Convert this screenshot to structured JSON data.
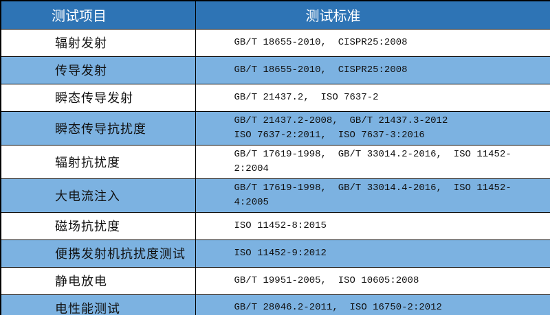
{
  "header": {
    "col1": "测试项目",
    "col2": "测试标准"
  },
  "rows": [
    {
      "item": "辐射发射",
      "standard": "GB/T 18655-2010,  CISPR25:2008"
    },
    {
      "item": "传导发射",
      "standard": "GB/T 18655-2010,  CISPR25:2008"
    },
    {
      "item": "瞬态传导发射",
      "standard": "GB/T 21437.2,  ISO 7637-2"
    },
    {
      "item": "瞬态传导抗扰度",
      "standard": "GB/T 21437.2-2008,  GB/T 21437.3-2012\nISO 7637-2:2011,  ISO 7637-3:2016"
    },
    {
      "item": "辐射抗扰度",
      "standard": "GB/T 17619-1998,  GB/T 33014.2-2016,  ISO 11452-2:2004"
    },
    {
      "item": "大电流注入",
      "standard": "GB/T 17619-1998,  GB/T 33014.4-2016,  ISO 11452-4:2005"
    },
    {
      "item": "磁场抗扰度",
      "standard": "ISO 11452-8:2015"
    },
    {
      "item": "便携发射机抗扰度测试",
      "standard": "ISO 11452-9:2012"
    },
    {
      "item": "静电放电",
      "standard": "GB/T 19951-2005,  ISO 10605:2008"
    },
    {
      "item": "电性能测试",
      "standard": "GB/T 28046.2-2011,  ISO 16750-2:2012"
    }
  ],
  "colors": {
    "header_bg": "#2E74B5",
    "header_text": "#FFFFFF",
    "row_bg": "#FFFFFF",
    "row_alt_bg": "#7CB2E1",
    "body_text": "#111111",
    "border": "#000000"
  }
}
